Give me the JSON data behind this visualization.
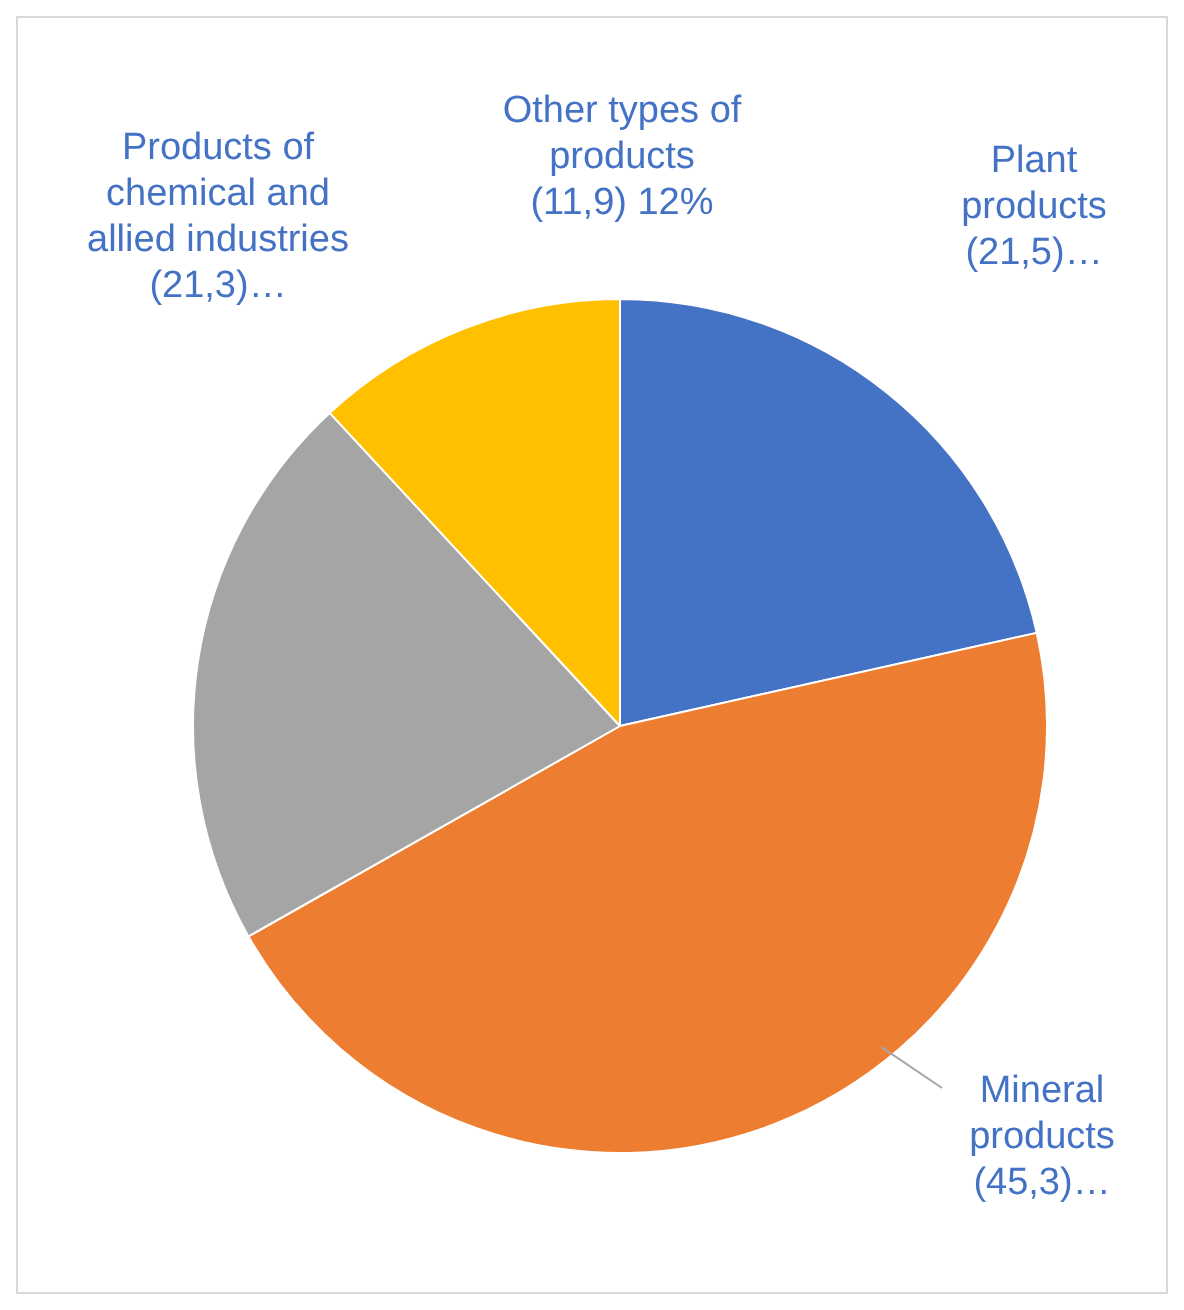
{
  "chart_data": {
    "type": "pie",
    "categories": [
      "Plant products",
      "Mineral products",
      "Products of chemical and allied industries",
      "Other types of products"
    ],
    "values": [
      21.5,
      45.3,
      21.3,
      11.9
    ],
    "value_labels": [
      "(21,5)…",
      "(45,3)…",
      "(21,3)…",
      "(11,9) 12%"
    ],
    "colors": [
      "#4472c4",
      "#ed7d31",
      "#a5a5a5",
      "#ffc000"
    ],
    "legend": false
  }
}
